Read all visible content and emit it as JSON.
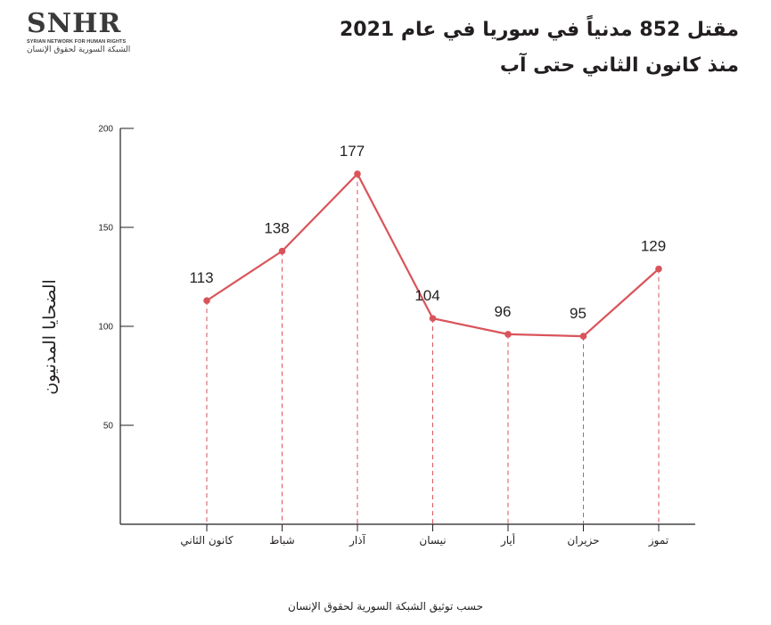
{
  "logo": {
    "mark": "SNHR",
    "english": "SYRIAN NETWORK FOR HUMAN RIGHTS",
    "arabic": "الشبكة السورية لحقوق الإنسان"
  },
  "source_note": "حسب توثيق الشبكة السورية لحقوق الإنسان",
  "colors": {
    "line": "#d9545a",
    "axis": "#231f20"
  },
  "chart_data": {
    "type": "line",
    "title": "مقتل 852 مدنياً في سوريا في عام 2021",
    "subtitle": "منذ كانون الثاني حتى آب",
    "ylabel": "الضحايا المدنيون",
    "xlabel": "",
    "categories": [
      "كانون الثاني",
      "شباط",
      "آذار",
      "نيسان",
      "أيار",
      "حزيران",
      "تموز"
    ],
    "values": [
      113,
      138,
      177,
      104,
      96,
      95,
      129
    ],
    "ylim": [
      0,
      200
    ],
    "yticks": [
      50,
      100,
      150,
      200
    ],
    "grid": false,
    "data_labels": true,
    "drop_lines": "dashed"
  }
}
